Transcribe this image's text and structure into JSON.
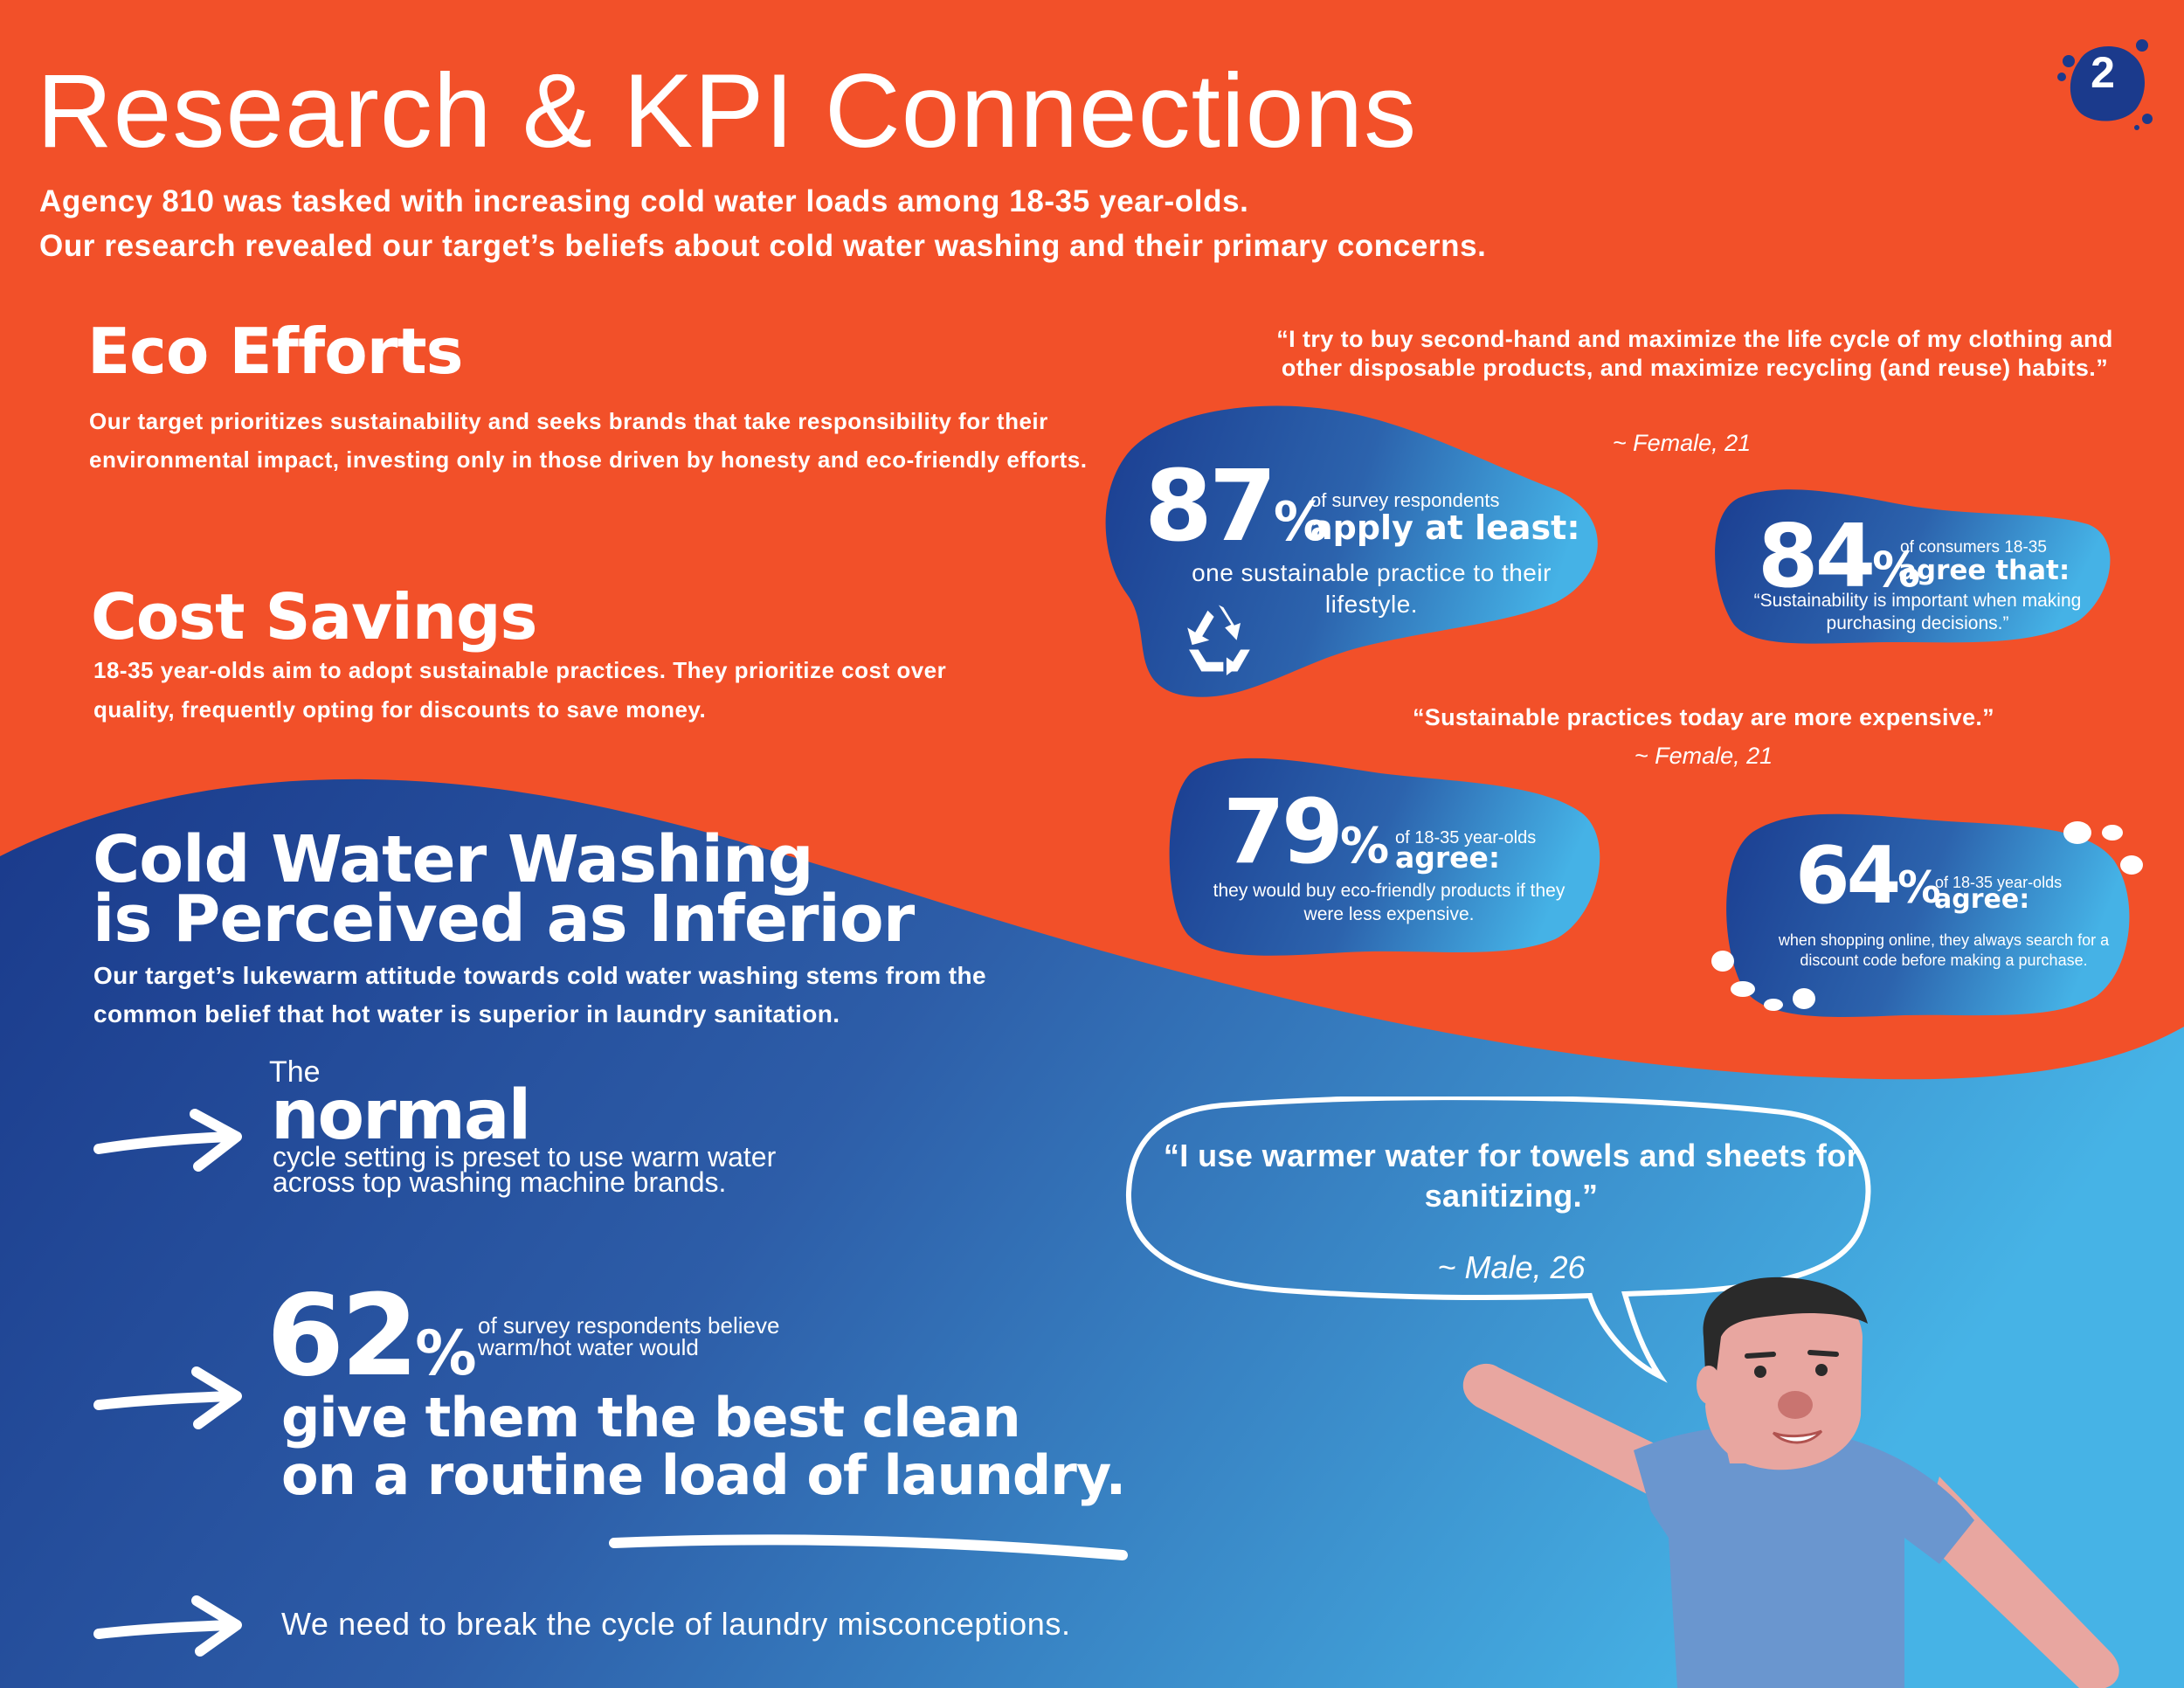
{
  "page": {
    "number": "2"
  },
  "header": {
    "title": "Research & KPI Connections",
    "intro_line1": "Agency 810 was tasked with increasing cold water loads among 18-35 year-olds.",
    "intro_line2": "Our research revealed our target’s beliefs about cold water washing and their primary concerns."
  },
  "eco": {
    "heading": "Eco Efforts",
    "body": "Our target prioritizes sustainability and seeks brands that take responsibility for their environmental impact, investing only in those driven by honesty and eco-friendly efforts."
  },
  "cost": {
    "heading": "Cost Savings",
    "body": "18-35 year-olds aim to adopt sustainable practices. They prioritize cost over quality, frequently opting for discounts to save money."
  },
  "cold": {
    "heading_line1": "Cold Water Washing",
    "heading_line2": "is Perceived as Inferior",
    "body": "Our target’s lukewarm attitude towards cold water washing stems from the common belief that hot water is superior in laundry sanitation."
  },
  "quotes": {
    "top": "“I try to buy second-hand and maximize the life cycle of my clothing and other disposable products, and maximize recycling (and reuse) habits.”",
    "top_attr": "~ Female, 21",
    "mid": "“Sustainable practices today are more expensive.”",
    "mid_attr": "~ Female, 21"
  },
  "stats": {
    "s87": {
      "number": "87",
      "unit": "%",
      "sub": "of survey respondents",
      "label": "apply at least:",
      "desc": "one sustainable practice to their lifestyle."
    },
    "s84": {
      "number": "84",
      "unit": "%",
      "sub": "of consumers 18-35",
      "label": "agree that:",
      "desc": "“Sustainability is important when making purchasing decisions.”"
    },
    "s79": {
      "number": "79",
      "unit": "%",
      "sub": "of 18-35 year-olds",
      "label": "agree:",
      "desc": "they would buy eco-friendly products if they were less expensive."
    },
    "s64": {
      "number": "64",
      "unit": "%",
      "sub": "of 18-35 year-olds",
      "label": "agree:",
      "desc": "when shopping online, they always search for a discount code before making a purchase."
    }
  },
  "normal": {
    "the": "The",
    "word": "normal",
    "desc": "cycle setting is preset to use warm water across top washing machine brands."
  },
  "s62": {
    "number": "62",
    "unit": "%",
    "sub": "of survey respondents believe warm/hot water would",
    "main_line1": "give them the best clean",
    "main_line2": "on a routine load of laundry."
  },
  "closing": "We need to break the cycle of laundry misconceptions.",
  "speech": {
    "text": "“I use warmer water for towels and sheets for sanitizing.”",
    "attr": "~ Male, 26"
  },
  "colors": {
    "orange": "#f25029",
    "navy": "#1b3a8c",
    "light_blue": "#45b2e6"
  },
  "icons": [
    "recycle-icon",
    "arrow-right-icon",
    "speech-bubble",
    "man-illustration",
    "paint-splat-badge"
  ]
}
